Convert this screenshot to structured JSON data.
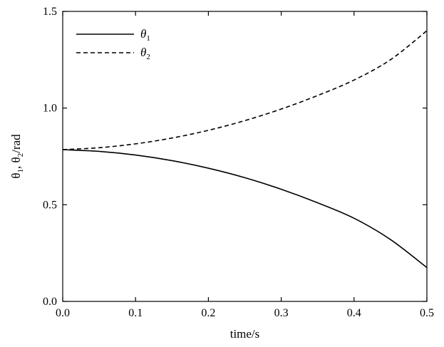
{
  "chart_data": {
    "type": "line",
    "title": "",
    "xlabel": "time/s",
    "ylabel": "θ1, θ2/rad",
    "xlim": [
      0.0,
      0.5
    ],
    "ylim": [
      0.0,
      1.5
    ],
    "xticks": [
      "0.0",
      "0.1",
      "0.2",
      "0.3",
      "0.4",
      "0.5"
    ],
    "yticks": [
      "0.0",
      "0.5",
      "1.0",
      "1.5"
    ],
    "grid": false,
    "legend_position": "top-left",
    "series": [
      {
        "name": "θ1",
        "style": "solid",
        "color": "#000000",
        "x": [
          0.0,
          0.05,
          0.1,
          0.15,
          0.2,
          0.25,
          0.3,
          0.35,
          0.4,
          0.45,
          0.5
        ],
        "y": [
          0.785,
          0.776,
          0.757,
          0.728,
          0.689,
          0.64,
          0.58,
          0.51,
          0.43,
          0.32,
          0.175
        ]
      },
      {
        "name": "θ2",
        "style": "dashed",
        "color": "#000000",
        "x": [
          0.0,
          0.05,
          0.1,
          0.15,
          0.2,
          0.25,
          0.3,
          0.35,
          0.4,
          0.45,
          0.5
        ],
        "y": [
          0.785,
          0.795,
          0.815,
          0.845,
          0.885,
          0.935,
          0.995,
          1.065,
          1.145,
          1.25,
          1.4
        ]
      }
    ]
  }
}
